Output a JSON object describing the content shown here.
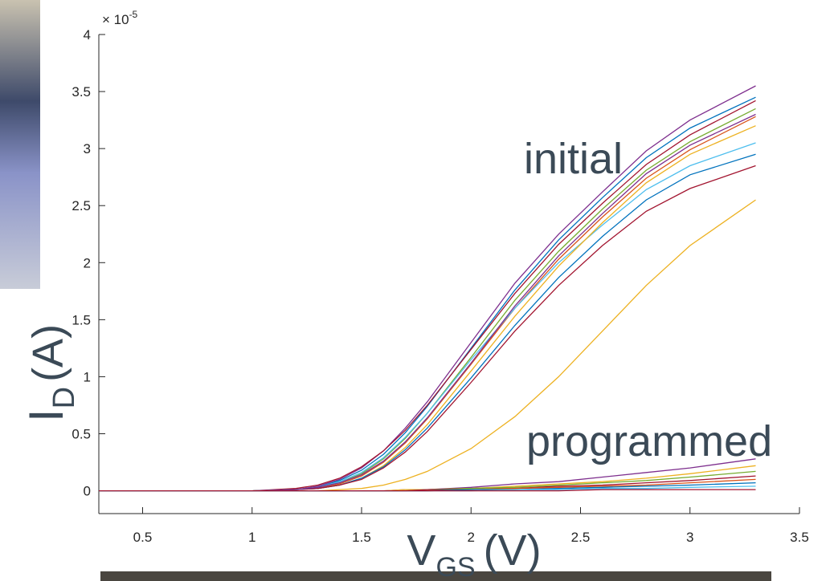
{
  "chart_data": {
    "type": "line",
    "x": [
      0.3,
      1.0,
      1.2,
      1.3,
      1.4,
      1.5,
      1.6,
      1.7,
      1.8,
      2.0,
      2.2,
      2.4,
      2.6,
      2.8,
      3.0,
      3.3
    ],
    "xlim": [
      0.3,
      3.5
    ],
    "ylim": [
      -0.2,
      4
    ],
    "xticks": [
      0.5,
      1,
      1.5,
      2,
      2.5,
      3,
      3.5
    ],
    "yticks": [
      0,
      0.5,
      1,
      1.5,
      2,
      2.5,
      3,
      3.5,
      4
    ],
    "y_multiplier": "× 10",
    "y_multiplier_exponent": "-5",
    "ylabel": {
      "main": "I",
      "sub": "D",
      "unit": "(A)"
    },
    "xlabel": {
      "main": "V",
      "sub": "GS",
      "unit": "(V)"
    },
    "annotations": [
      "initial",
      "programmed"
    ],
    "series": [
      {
        "color": "#7E2F8E",
        "values": [
          0,
          0,
          0.01,
          0.04,
          0.1,
          0.2,
          0.35,
          0.55,
          0.78,
          1.3,
          1.82,
          2.25,
          2.62,
          2.98,
          3.25,
          3.55
        ]
      },
      {
        "color": "#0072BD",
        "values": [
          0,
          0,
          0.01,
          0.03,
          0.09,
          0.18,
          0.32,
          0.51,
          0.74,
          1.25,
          1.76,
          2.2,
          2.57,
          2.92,
          3.18,
          3.45
        ]
      },
      {
        "color": "#A2142F",
        "values": [
          0,
          0,
          0.02,
          0.05,
          0.11,
          0.21,
          0.35,
          0.53,
          0.75,
          1.24,
          1.73,
          2.16,
          2.52,
          2.86,
          3.12,
          3.42
        ]
      },
      {
        "color": "#77AC30",
        "values": [
          0,
          0,
          0.01,
          0.03,
          0.07,
          0.15,
          0.28,
          0.46,
          0.68,
          1.17,
          1.67,
          2.1,
          2.47,
          2.81,
          3.06,
          3.35
        ]
      },
      {
        "color": "#D95319",
        "values": [
          0,
          0,
          0.01,
          0.02,
          0.06,
          0.13,
          0.25,
          0.42,
          0.63,
          1.11,
          1.6,
          2.03,
          2.4,
          2.74,
          2.99,
          3.28
        ]
      },
      {
        "color": "#4DBEEE",
        "values": [
          0,
          0,
          0.01,
          0.03,
          0.08,
          0.16,
          0.29,
          0.47,
          0.68,
          1.15,
          1.6,
          2.0,
          2.33,
          2.64,
          2.85,
          3.05
        ]
      },
      {
        "color": "#EDB120",
        "values": [
          0,
          0,
          0.01,
          0.02,
          0.05,
          0.11,
          0.22,
          0.38,
          0.58,
          1.05,
          1.53,
          1.97,
          2.35,
          2.7,
          2.95,
          3.2
        ]
      },
      {
        "color": "#0072BD",
        "values": [
          0,
          0,
          0.01,
          0.02,
          0.05,
          0.11,
          0.21,
          0.36,
          0.55,
          0.99,
          1.45,
          1.87,
          2.23,
          2.55,
          2.77,
          2.95
        ]
      },
      {
        "color": "#A2142F",
        "values": [
          0,
          0,
          0.01,
          0.02,
          0.05,
          0.1,
          0.2,
          0.34,
          0.52,
          0.95,
          1.4,
          1.8,
          2.15,
          2.45,
          2.65,
          2.85
        ]
      },
      {
        "color": "#7E2F8E",
        "values": [
          0,
          0,
          0.01,
          0.03,
          0.07,
          0.14,
          0.26,
          0.43,
          0.64,
          1.12,
          1.62,
          2.06,
          2.43,
          2.78,
          3.03,
          3.3
        ]
      },
      {
        "color": "#EDB120",
        "values": [
          0,
          0,
          0,
          0,
          0.01,
          0.02,
          0.05,
          0.1,
          0.17,
          0.37,
          0.65,
          1.0,
          1.4,
          1.8,
          2.15,
          2.55
        ]
      },
      {
        "color": "#7E2F8E",
        "values": [
          0,
          0,
          0,
          0,
          0,
          0,
          0,
          0.01,
          0.01,
          0.03,
          0.06,
          0.08,
          0.12,
          0.16,
          0.2,
          0.28
        ]
      },
      {
        "color": "#EDB120",
        "values": [
          0,
          0,
          0,
          0,
          0,
          0,
          0,
          0.01,
          0.01,
          0.02,
          0.04,
          0.06,
          0.08,
          0.11,
          0.15,
          0.22
        ]
      },
      {
        "color": "#77AC30",
        "values": [
          0,
          0,
          0,
          0,
          0,
          0,
          0,
          0,
          0.01,
          0.02,
          0.03,
          0.05,
          0.07,
          0.09,
          0.12,
          0.17
        ]
      },
      {
        "color": "#A2142F",
        "values": [
          0,
          0,
          0,
          0,
          0,
          0,
          0,
          0,
          0.01,
          0.01,
          0.02,
          0.04,
          0.05,
          0.07,
          0.09,
          0.13
        ]
      },
      {
        "color": "#D95319",
        "values": [
          0,
          0,
          0,
          0,
          0,
          0,
          0,
          0,
          0,
          0.01,
          0.02,
          0.03,
          0.04,
          0.05,
          0.07,
          0.1
        ]
      },
      {
        "color": "#0072BD",
        "values": [
          0,
          0,
          0,
          0,
          0,
          0,
          0,
          0,
          0,
          0.01,
          0.01,
          0.02,
          0.03,
          0.04,
          0.05,
          0.07
        ]
      },
      {
        "color": "#4DBEEE",
        "values": [
          0,
          0,
          0,
          0,
          0,
          0,
          0,
          0,
          0,
          0,
          0.01,
          0.01,
          0.02,
          0.02,
          0.03,
          0.04
        ]
      },
      {
        "color": "#A2142F",
        "values": [
          0,
          0,
          0,
          0,
          0,
          0,
          0,
          0,
          0,
          0,
          0,
          0,
          0.01,
          0.01,
          0.01,
          0.01
        ]
      }
    ]
  }
}
